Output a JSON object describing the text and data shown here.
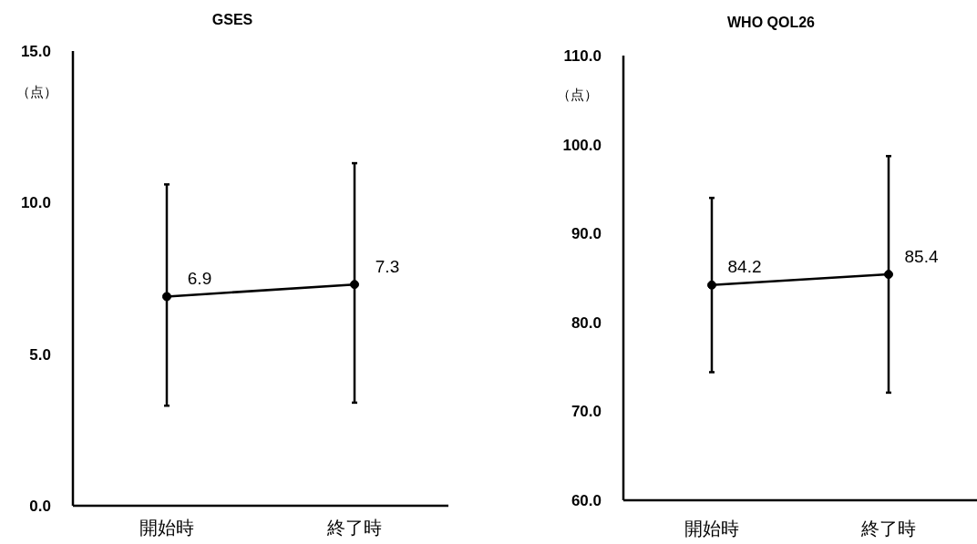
{
  "chart_data": [
    {
      "type": "line",
      "title": "GSES",
      "ylabel": "（点）",
      "categories": [
        "開始時",
        "終了時"
      ],
      "values": [
        6.9,
        7.3
      ],
      "errors": [
        [
          3.3,
          10.6
        ],
        [
          3.4,
          11.3
        ]
      ],
      "color": "#000000",
      "marker": "circle",
      "data_labels": true,
      "ylim": [
        0,
        15
      ],
      "yticks": [
        {
          "value": 0,
          "label": "0.0"
        },
        {
          "value": 5,
          "label": "5.0"
        },
        {
          "value": 10,
          "label": "10.0"
        },
        {
          "value": 15,
          "label": "15.0"
        }
      ]
    },
    {
      "type": "line",
      "title": "WHO QOL26",
      "ylabel": "（点）",
      "categories": [
        "開始時",
        "終了時"
      ],
      "values": [
        84.2,
        85.4
      ],
      "errors": [
        [
          74.4,
          94.0
        ],
        [
          72.1,
          98.7
        ]
      ],
      "color": "#000000",
      "marker": "circle",
      "data_labels": true,
      "ylim": [
        60,
        110
      ],
      "yticks": [
        {
          "value": 60,
          "label": "60.0"
        },
        {
          "value": 70,
          "label": "70.0"
        },
        {
          "value": 80,
          "label": "80.0"
        },
        {
          "value": 90,
          "label": "90.0"
        },
        {
          "value": 100,
          "label": "100.0"
        },
        {
          "value": 110,
          "label": "110.0"
        }
      ]
    }
  ]
}
